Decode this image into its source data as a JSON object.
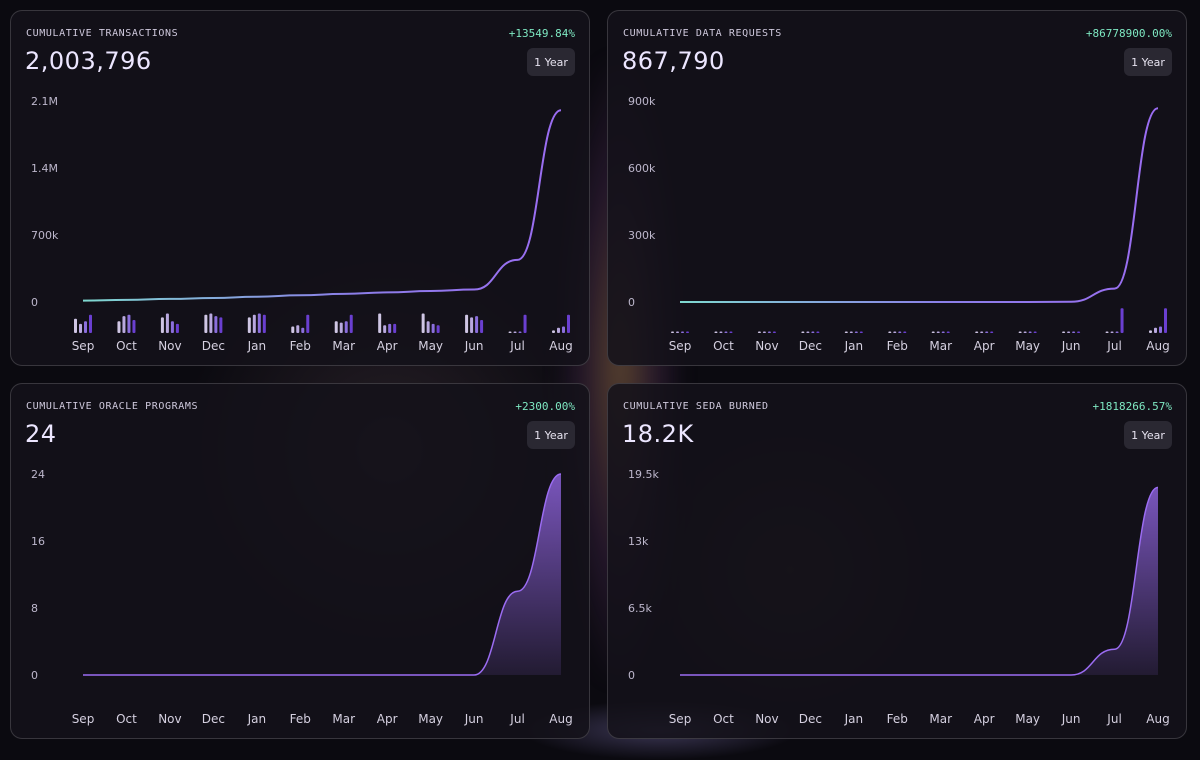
{
  "period_label": "1 Year",
  "months": [
    "Sep",
    "Oct",
    "Nov",
    "Dec",
    "Jan",
    "Feb",
    "Mar",
    "Apr",
    "May",
    "Jun",
    "Jul",
    "Aug"
  ],
  "colors": {
    "line": "#9b6cf2",
    "line_start": "#7fd9d0",
    "change": "#7ee8c2",
    "bar_light": "#cfc6e4",
    "bar_dark": "#6a3fd0"
  },
  "cards": [
    {
      "title": "CUMULATIVE TRANSACTIONS",
      "value": "2,003,796",
      "change": "+13549.84%",
      "chart_data": {
        "type": "line",
        "title": "CUMULATIVE TRANSACTIONS",
        "x": [
          "Sep",
          "Oct",
          "Nov",
          "Dec",
          "Jan",
          "Feb",
          "Mar",
          "Apr",
          "May",
          "Jun",
          "Jul",
          "Aug"
        ],
        "values": [
          14700,
          22000,
          32000,
          42000,
          55000,
          70000,
          85000,
          100000,
          115000,
          130000,
          440000,
          2003796
        ],
        "yticks": [
          0,
          700000,
          1400000,
          2100000
        ],
        "ytick_labels": [
          "0",
          "700k",
          "1.4M",
          "2.1M"
        ],
        "ylim": [
          0,
          2100000
        ],
        "area": false,
        "monthly_bars": [
          [
            0.55,
            0.35,
            0.45,
            0.7
          ],
          [
            0.45,
            0.65,
            0.7,
            0.5
          ],
          [
            0.6,
            0.75,
            0.45,
            0.35
          ],
          [
            0.7,
            0.75,
            0.65,
            0.6
          ],
          [
            0.6,
            0.7,
            0.75,
            0.7
          ],
          [
            0.25,
            0.3,
            0.2,
            0.7
          ],
          [
            0.45,
            0.4,
            0.45,
            0.7
          ],
          [
            0.75,
            0.3,
            0.35,
            0.35
          ],
          [
            0.75,
            0.45,
            0.35,
            0.3
          ],
          [
            0.7,
            0.6,
            0.65,
            0.5
          ],
          [
            0.05,
            0.05,
            0.05,
            0.7
          ],
          [
            0.1,
            0.2,
            0.25,
            0.7
          ]
        ]
      }
    },
    {
      "title": "CUMULATIVE DATA REQUESTS",
      "value": "867,790",
      "change": "+86778900.00%",
      "chart_data": {
        "type": "line",
        "title": "CUMULATIVE DATA REQUESTS",
        "x": [
          "Sep",
          "Oct",
          "Nov",
          "Dec",
          "Jan",
          "Feb",
          "Mar",
          "Apr",
          "May",
          "Jun",
          "Jul",
          "Aug"
        ],
        "values": [
          1,
          1,
          1,
          1,
          1,
          1,
          1,
          1,
          1,
          1000,
          60000,
          867790
        ],
        "yticks": [
          0,
          300000,
          600000,
          900000
        ],
        "ytick_labels": [
          "0",
          "300k",
          "600k",
          "900k"
        ],
        "ylim": [
          0,
          900000
        ],
        "area": false,
        "monthly_bars": [
          [
            0.05,
            0.05,
            0.05,
            0.05
          ],
          [
            0.05,
            0.05,
            0.05,
            0.05
          ],
          [
            0.05,
            0.05,
            0.05,
            0.05
          ],
          [
            0.05,
            0.05,
            0.05,
            0.05
          ],
          [
            0.05,
            0.05,
            0.05,
            0.05
          ],
          [
            0.05,
            0.05,
            0.05,
            0.05
          ],
          [
            0.05,
            0.05,
            0.05,
            0.05
          ],
          [
            0.05,
            0.05,
            0.05,
            0.05
          ],
          [
            0.05,
            0.05,
            0.05,
            0.05
          ],
          [
            0.05,
            0.05,
            0.05,
            0.05
          ],
          [
            0.05,
            0.05,
            0.05,
            0.95
          ],
          [
            0.1,
            0.2,
            0.25,
            0.95
          ]
        ]
      }
    },
    {
      "title": "CUMULATIVE ORACLE PROGRAMS",
      "value": "24",
      "change": "+2300.00%",
      "chart_data": {
        "type": "area",
        "title": "CUMULATIVE ORACLE PROGRAMS",
        "x": [
          "Sep",
          "Oct",
          "Nov",
          "Dec",
          "Jan",
          "Feb",
          "Mar",
          "Apr",
          "May",
          "Jun",
          "Jul",
          "Aug"
        ],
        "values": [
          0,
          0,
          0,
          0,
          0,
          0,
          0,
          0,
          0,
          0,
          10,
          24
        ],
        "yticks": [
          0,
          8,
          16,
          24
        ],
        "ytick_labels": [
          "0",
          "8",
          "16",
          "24"
        ],
        "ylim": [
          0,
          24
        ],
        "area": true
      }
    },
    {
      "title": "CUMULATIVE SEDA BURNED",
      "value": "18.2K",
      "change": "+1818266.57%",
      "chart_data": {
        "type": "area",
        "title": "CUMULATIVE SEDA BURNED",
        "x": [
          "Sep",
          "Oct",
          "Nov",
          "Dec",
          "Jan",
          "Feb",
          "Mar",
          "Apr",
          "May",
          "Jun",
          "Jul",
          "Aug"
        ],
        "values": [
          0,
          0,
          0,
          0,
          0,
          0,
          0,
          0,
          0,
          0,
          2500,
          18200
        ],
        "yticks": [
          0,
          6500,
          13000,
          19500
        ],
        "ytick_labels": [
          "0",
          "6.5k",
          "13k",
          "19.5k"
        ],
        "ylim": [
          0,
          19500
        ],
        "area": true
      }
    }
  ]
}
